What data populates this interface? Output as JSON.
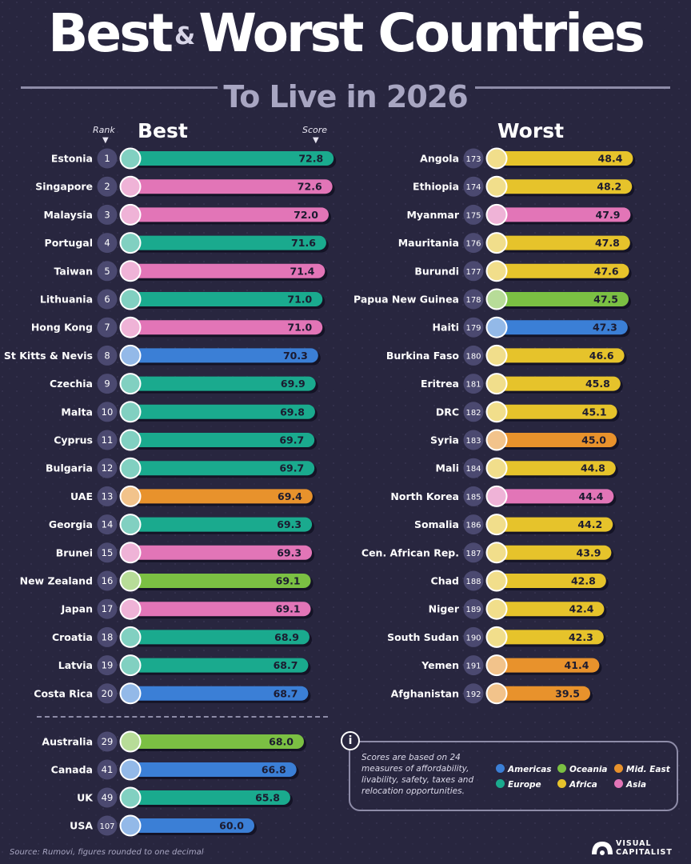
{
  "title": {
    "part1": "Best",
    "amp": "&",
    "part2": "Worst Countries",
    "subtitle": "To Live in 2026"
  },
  "headers": {
    "rank": "Rank",
    "best": "Best",
    "score": "Score",
    "worst": "Worst"
  },
  "colors": {
    "Americas": "#3b7fd6",
    "Oceania": "#7bc043",
    "Mid. East": "#e8922c",
    "Europe": "#1aaa8e",
    "Africa": "#e6c32b",
    "Asia": "#e275b7"
  },
  "chart_data": {
    "type": "bar",
    "title": "Best & Worst Countries To Live in 2026",
    "xlabel": "",
    "ylabel": "Score",
    "best": [
      {
        "country": "Estonia",
        "rank": "1",
        "score": 72.8,
        "region": "Europe"
      },
      {
        "country": "Singapore",
        "rank": "2",
        "score": 72.6,
        "region": "Asia"
      },
      {
        "country": "Malaysia",
        "rank": "3",
        "score": 72.0,
        "region": "Asia"
      },
      {
        "country": "Portugal",
        "rank": "4",
        "score": 71.6,
        "region": "Europe"
      },
      {
        "country": "Taiwan",
        "rank": "5",
        "score": 71.4,
        "region": "Asia"
      },
      {
        "country": "Lithuania",
        "rank": "6",
        "score": 71.0,
        "region": "Europe"
      },
      {
        "country": "Hong Kong",
        "rank": "7",
        "score": 71.0,
        "region": "Asia"
      },
      {
        "country": "St Kitts & Nevis",
        "rank": "8",
        "score": 70.3,
        "region": "Americas"
      },
      {
        "country": "Czechia",
        "rank": "9",
        "score": 69.9,
        "region": "Europe"
      },
      {
        "country": "Malta",
        "rank": "10",
        "score": 69.8,
        "region": "Europe"
      },
      {
        "country": "Cyprus",
        "rank": "11",
        "score": 69.7,
        "region": "Europe"
      },
      {
        "country": "Bulgaria",
        "rank": "12",
        "score": 69.7,
        "region": "Europe"
      },
      {
        "country": "UAE",
        "rank": "13",
        "score": 69.4,
        "region": "Mid. East"
      },
      {
        "country": "Georgia",
        "rank": "14",
        "score": 69.3,
        "region": "Europe"
      },
      {
        "country": "Brunei",
        "rank": "15",
        "score": 69.3,
        "region": "Asia"
      },
      {
        "country": "New Zealand",
        "rank": "16",
        "score": 69.1,
        "region": "Oceania"
      },
      {
        "country": "Japan",
        "rank": "17",
        "score": 69.1,
        "region": "Asia"
      },
      {
        "country": "Croatia",
        "rank": "18",
        "score": 68.9,
        "region": "Europe"
      },
      {
        "country": "Latvia",
        "rank": "19",
        "score": 68.7,
        "region": "Europe"
      },
      {
        "country": "Costa Rica",
        "rank": "20",
        "score": 68.7,
        "region": "Americas"
      }
    ],
    "extra": [
      {
        "country": "Australia",
        "rank": "29",
        "score": 68.0,
        "region": "Oceania"
      },
      {
        "country": "Canada",
        "rank": "41",
        "score": 66.8,
        "region": "Americas"
      },
      {
        "country": "UK",
        "rank": "49",
        "score": 65.8,
        "region": "Europe"
      },
      {
        "country": "USA",
        "rank": "107",
        "score": 60.0,
        "region": "Americas"
      }
    ],
    "worst": [
      {
        "country": "Angola",
        "rank": "173",
        "score": 48.4,
        "region": "Africa"
      },
      {
        "country": "Ethiopia",
        "rank": "174",
        "score": 48.2,
        "region": "Africa"
      },
      {
        "country": "Myanmar",
        "rank": "175",
        "score": 47.9,
        "region": "Asia"
      },
      {
        "country": "Mauritania",
        "rank": "176",
        "score": 47.8,
        "region": "Africa"
      },
      {
        "country": "Burundi",
        "rank": "177",
        "score": 47.6,
        "region": "Africa"
      },
      {
        "country": "Papua New Guinea",
        "rank": "178",
        "score": 47.5,
        "region": "Oceania"
      },
      {
        "country": "Haiti",
        "rank": "179",
        "score": 47.3,
        "region": "Americas"
      },
      {
        "country": "Burkina Faso",
        "rank": "180",
        "score": 46.6,
        "region": "Africa"
      },
      {
        "country": "Eritrea",
        "rank": "181",
        "score": 45.8,
        "region": "Africa"
      },
      {
        "country": "DRC",
        "rank": "182",
        "score": 45.1,
        "region": "Africa"
      },
      {
        "country": "Syria",
        "rank": "183",
        "score": 45.0,
        "region": "Mid. East"
      },
      {
        "country": "Mali",
        "rank": "184",
        "score": 44.8,
        "region": "Africa"
      },
      {
        "country": "North Korea",
        "rank": "185",
        "score": 44.4,
        "region": "Asia"
      },
      {
        "country": "Somalia",
        "rank": "186",
        "score": 44.2,
        "region": "Africa"
      },
      {
        "country": "Cen. African Rep.",
        "rank": "187",
        "score": 43.9,
        "region": "Africa"
      },
      {
        "country": "Chad",
        "rank": "188",
        "score": 42.8,
        "region": "Africa"
      },
      {
        "country": "Niger",
        "rank": "189",
        "score": 42.4,
        "region": "Africa"
      },
      {
        "country": "South Sudan",
        "rank": "190",
        "score": 42.3,
        "region": "Africa"
      },
      {
        "country": "Yemen",
        "rank": "191",
        "score": 41.4,
        "region": "Mid. East"
      },
      {
        "country": "Afghanistan",
        "rank": "192",
        "score": 39.5,
        "region": "Mid. East"
      }
    ],
    "legend": [
      "Americas",
      "Oceania",
      "Mid. East",
      "Europe",
      "Africa",
      "Asia"
    ],
    "legend_position": "bottom-right"
  },
  "note": "Scores are based on 24 measures of affordability, livability, safety, taxes and relocation opportunities.",
  "source": "Source: Rumovi, figures rounded to one decimal",
  "brand": {
    "line1": "VISUAL",
    "line2": "CAPITALIST"
  }
}
